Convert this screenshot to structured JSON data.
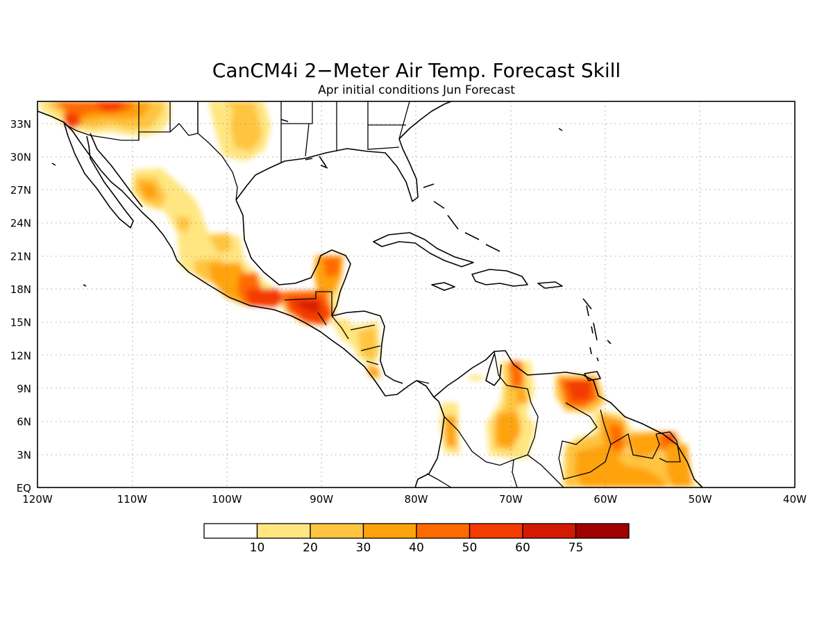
{
  "map": {
    "title": "CanCM4i 2−Meter Air Temp. Forecast Skill",
    "subtitle": "Apr initial conditions  Jun Forecast",
    "lon_range": [
      -120,
      -40
    ],
    "lat_range": [
      0,
      35
    ],
    "x_ticks": [
      "120W",
      "110W",
      "100W",
      "90W",
      "80W",
      "70W",
      "60W",
      "50W",
      "40W"
    ],
    "y_ticks": [
      "EQ",
      "3N",
      "6N",
      "9N",
      "12N",
      "15N",
      "18N",
      "21N",
      "24N",
      "27N",
      "30N",
      "33N"
    ],
    "colorbar": {
      "labels": [
        "10",
        "20",
        "30",
        "40",
        "50",
        "60",
        "75"
      ],
      "colors": [
        "#ffffff",
        "#ffe680",
        "#ffc440",
        "#ffa30d",
        "#ff6a00",
        "#f43b00",
        "#d31a00",
        "#a00000"
      ]
    }
  }
}
